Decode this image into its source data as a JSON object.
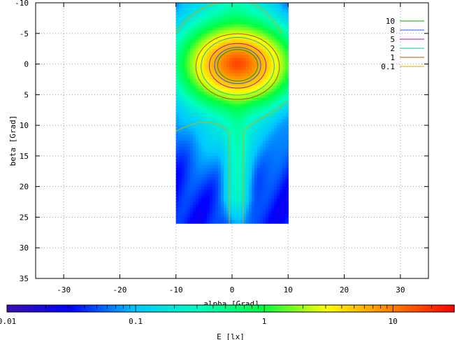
{
  "chart_data": {
    "type": "heatmap",
    "title": "",
    "xlabel": "alpha [Grad]",
    "ylabel": "beta [Grad]",
    "xlim": [
      -35,
      35
    ],
    "ylim": [
      -10,
      35
    ],
    "y_inverted": true,
    "grid": true,
    "x_ticks": [
      -30,
      -20,
      -10,
      0,
      10,
      20,
      30
    ],
    "y_ticks": [
      -10,
      -5,
      0,
      5,
      10,
      15,
      20,
      25,
      30,
      35
    ],
    "data_extent": {
      "alpha": [
        -10,
        10
      ],
      "beta": [
        -10,
        26
      ]
    },
    "peak": {
      "alpha": 1,
      "beta": 0,
      "value": 10
    },
    "colorbar": {
      "label": "E [lx]",
      "scale": "log",
      "range": [
        0.01,
        30
      ],
      "ticks": [
        0.01,
        0.1,
        1,
        10
      ],
      "tick_labels": [
        "0.01",
        "0.1",
        "1",
        "10"
      ],
      "gradient": [
        "#3a10b0",
        "#0000ff",
        "#00c8ff",
        "#00ffc0",
        "#00ff40",
        "#ffff00",
        "#ff8000",
        "#ff0000"
      ]
    },
    "contour_levels": [
      10,
      8,
      5,
      2,
      1,
      0.1
    ],
    "legend": {
      "position": "top-right",
      "entries": [
        {
          "label": "10",
          "color": "#00a000"
        },
        {
          "label": "8",
          "color": "#2060ff"
        },
        {
          "label": "5",
          "color": "#c000c0"
        },
        {
          "label": "2",
          "color": "#00c0c0"
        },
        {
          "label": "1",
          "color": "#c05000"
        },
        {
          "label": "0.1",
          "color": "#c8b000"
        }
      ]
    }
  }
}
